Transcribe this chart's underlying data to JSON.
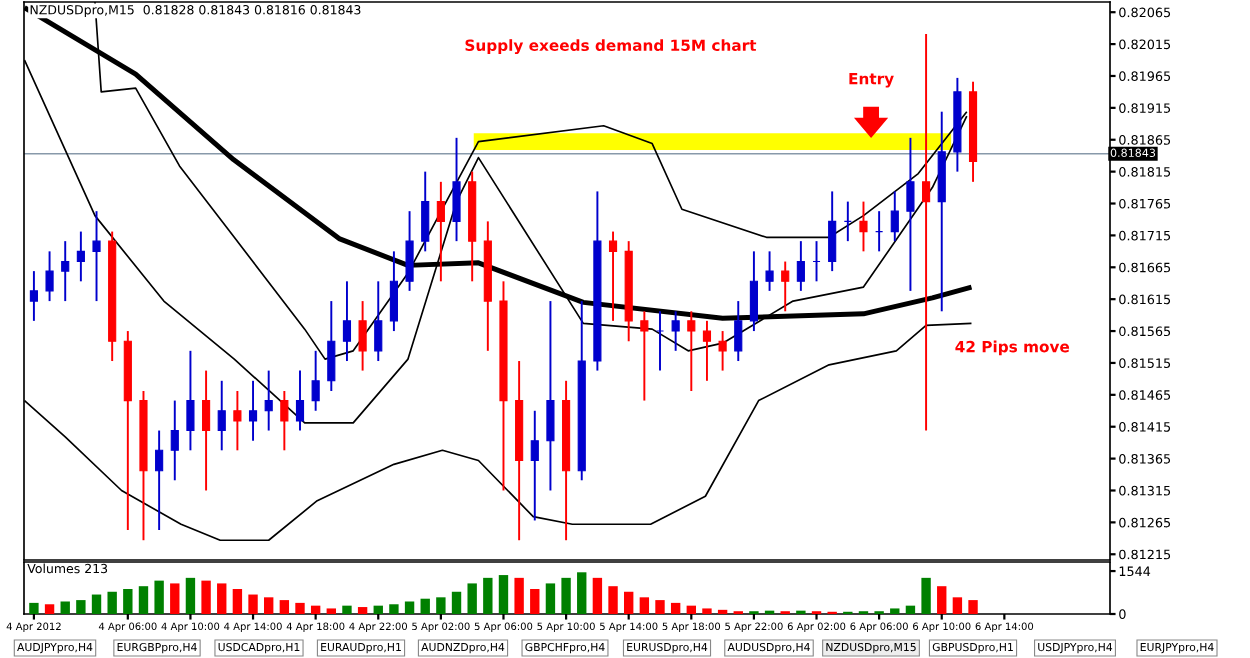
{
  "chart_data": [
    {
      "type": "candlestick",
      "title": "NZDUSDpro,M15  0.81828 0.81843 0.81816 0.81843",
      "x": [
        "2012-04-04T00:00",
        "2012-04-04T01:00",
        "2012-04-04T02:00",
        "2012-04-04T03:00",
        "2012-04-04T04:00",
        "2012-04-04T05:00",
        "2012-04-04T06:00",
        "2012-04-04T07:00",
        "2012-04-04T08:00",
        "2012-04-04T09:00",
        "2012-04-04T10:00",
        "2012-04-04T11:00",
        "2012-04-04T12:00",
        "2012-04-04T13:00",
        "2012-04-04T14:00",
        "2012-04-04T15:00",
        "2012-04-04T16:00",
        "2012-04-04T17:00",
        "2012-04-04T18:00",
        "2012-04-04T19:00",
        "2012-04-04T20:00",
        "2012-04-04T21:00",
        "2012-04-04T22:00",
        "2012-04-04T23:00",
        "2012-04-05T00:00",
        "2012-04-05T01:00",
        "2012-04-05T02:00",
        "2012-04-05T03:00",
        "2012-04-05T04:00",
        "2012-04-05T05:00",
        "2012-04-05T06:00",
        "2012-04-05T07:00",
        "2012-04-05T08:00",
        "2012-04-05T09:00",
        "2012-04-05T10:00",
        "2012-04-05T11:00",
        "2012-04-05T12:00",
        "2012-04-05T13:00",
        "2012-04-05T14:00",
        "2012-04-05T15:00",
        "2012-04-05T16:00",
        "2012-04-05T17:00",
        "2012-04-05T18:00",
        "2012-04-05T19:00",
        "2012-04-05T20:00",
        "2012-04-05T21:00",
        "2012-04-05T22:00",
        "2012-04-05T23:00",
        "2012-04-06T00:00",
        "2012-04-06T01:00",
        "2012-04-06T02:00",
        "2012-04-06T03:00",
        "2012-04-06T04:00",
        "2012-04-06T05:00",
        "2012-04-06T06:00",
        "2012-04-06T07:00",
        "2012-04-06T08:00",
        "2012-04-06T09:00",
        "2012-04-06T10:00",
        "2012-04-06T11:00",
        "2012-04-06T12:00"
      ],
      "ohlc": [
        [
          0.81612,
          0.81659,
          0.81581,
          0.81628
        ],
        [
          0.81628,
          0.8169,
          0.81612,
          0.81659
        ],
        [
          0.81659,
          0.81706,
          0.81612,
          0.81674
        ],
        [
          0.81674,
          0.81721,
          0.81643,
          0.8169
        ],
        [
          0.8169,
          0.81753,
          0.81612,
          0.81706
        ],
        [
          0.81706,
          0.81721,
          0.81518,
          0.81549
        ],
        [
          0.81549,
          0.81565,
          0.81253,
          0.81456
        ],
        [
          0.81456,
          0.81471,
          0.81237,
          0.81346
        ],
        [
          0.81346,
          0.81409,
          0.81253,
          0.81378
        ],
        [
          0.81378,
          0.81456,
          0.81331,
          0.81409
        ],
        [
          0.81409,
          0.81534,
          0.81378,
          0.81456
        ],
        [
          0.81456,
          0.81503,
          0.81315,
          0.81409
        ],
        [
          0.81409,
          0.81487,
          0.81378,
          0.8144
        ],
        [
          0.8144,
          0.81471,
          0.81378,
          0.81424
        ],
        [
          0.81424,
          0.81487,
          0.81393,
          0.8144
        ],
        [
          0.8144,
          0.81503,
          0.81409,
          0.81456
        ],
        [
          0.81456,
          0.81471,
          0.81378,
          0.81424
        ],
        [
          0.81424,
          0.81503,
          0.81409,
          0.81456
        ],
        [
          0.81456,
          0.81534,
          0.8144,
          0.81487
        ],
        [
          0.81487,
          0.81612,
          0.81471,
          0.81549
        ],
        [
          0.81549,
          0.81643,
          0.81518,
          0.81581
        ],
        [
          0.81581,
          0.81612,
          0.81503,
          0.81534
        ],
        [
          0.81534,
          0.81643,
          0.81518,
          0.81581
        ],
        [
          0.81581,
          0.8169,
          0.81565,
          0.81643
        ],
        [
          0.81643,
          0.81753,
          0.81628,
          0.81706
        ],
        [
          0.81706,
          0.81815,
          0.8169,
          0.81768
        ],
        [
          0.81768,
          0.81799,
          0.81643,
          0.81737
        ],
        [
          0.81737,
          0.81868,
          0.81706,
          0.81799
        ],
        [
          0.81799,
          0.81815,
          0.81643,
          0.81706
        ],
        [
          0.81706,
          0.81737,
          0.81534,
          0.81612
        ],
        [
          0.81612,
          0.81643,
          0.81315,
          0.81456
        ],
        [
          0.81456,
          0.81518,
          0.81237,
          0.81362
        ],
        [
          0.81362,
          0.8144,
          0.81268,
          0.81393
        ],
        [
          0.81393,
          0.81612,
          0.81315,
          0.81456
        ],
        [
          0.81456,
          0.81487,
          0.81237,
          0.81346
        ],
        [
          0.81346,
          0.81612,
          0.81331,
          0.81518
        ],
        [
          0.81518,
          0.81784,
          0.81503,
          0.81706
        ],
        [
          0.81706,
          0.81721,
          0.81581,
          0.8169
        ],
        [
          0.8169,
          0.81706,
          0.81549,
          0.81581
        ],
        [
          0.81581,
          0.81596,
          0.81456,
          0.81565
        ],
        [
          0.81565,
          0.81596,
          0.81503,
          0.81565
        ],
        [
          0.81565,
          0.81596,
          0.81534,
          0.81581
        ],
        [
          0.81581,
          0.81596,
          0.81471,
          0.81565
        ],
        [
          0.81565,
          0.81581,
          0.81487,
          0.81549
        ],
        [
          0.81549,
          0.81565,
          0.81503,
          0.81534
        ],
        [
          0.81534,
          0.81612,
          0.81518,
          0.81581
        ],
        [
          0.81581,
          0.8169,
          0.81565,
          0.81643
        ],
        [
          0.81643,
          0.8169,
          0.81628,
          0.81659
        ],
        [
          0.81659,
          0.81674,
          0.81596,
          0.81643
        ],
        [
          0.81643,
          0.81706,
          0.81628,
          0.81674
        ],
        [
          0.81674,
          0.81706,
          0.81643,
          0.81674
        ],
        [
          0.81674,
          0.81784,
          0.81659,
          0.81737
        ],
        [
          0.81737,
          0.81768,
          0.81706,
          0.81737
        ],
        [
          0.81737,
          0.81768,
          0.8169,
          0.81721
        ],
        [
          0.81721,
          0.81753,
          0.8169,
          0.81721
        ],
        [
          0.81721,
          0.81784,
          0.81706,
          0.81753
        ],
        [
          0.81753,
          0.81868,
          0.81628,
          0.81799
        ],
        [
          0.81799,
          0.82031,
          0.81409,
          0.81768
        ],
        [
          0.81768,
          0.81909,
          0.81596,
          0.81846
        ],
        [
          0.81846,
          0.81962,
          0.81815,
          0.8194
        ],
        [
          0.8194,
          0.81956,
          0.81799,
          0.81831
        ]
      ],
      "colors": [
        "#0000cd",
        "#0000cd",
        "#0000cd",
        "#0000cd",
        "#0000cd",
        "#ff0000",
        "#ff0000",
        "#ff0000",
        "#0000cd",
        "#0000cd",
        "#0000cd",
        "#ff0000",
        "#0000cd",
        "#ff0000",
        "#0000cd",
        "#0000cd",
        "#ff0000",
        "#0000cd",
        "#0000cd",
        "#0000cd",
        "#0000cd",
        "#ff0000",
        "#0000cd",
        "#0000cd",
        "#0000cd",
        "#0000cd",
        "#ff0000",
        "#0000cd",
        "#ff0000",
        "#ff0000",
        "#ff0000",
        "#ff0000",
        "#0000cd",
        "#0000cd",
        "#ff0000",
        "#0000cd",
        "#0000cd",
        "#ff0000",
        "#ff0000",
        "#ff0000",
        "#0000cd",
        "#0000cd",
        "#ff0000",
        "#ff0000",
        "#ff0000",
        "#0000cd",
        "#0000cd",
        "#0000cd",
        "#ff0000",
        "#0000cd",
        "#0000cd",
        "#0000cd",
        "#0000cd",
        "#ff0000",
        "#0000cd",
        "#0000cd",
        "#0000cd",
        "#ff0000",
        "#0000cd",
        "#0000cd",
        "#ff0000"
      ],
      "series": [
        {
          "type": "line",
          "color": "#000000",
          "x": [
            "2012-04-03T23:24",
            "2012-04-04T06:30",
            "2012-04-04T12:45",
            "2012-04-04T19:30",
            "2012-04-04T23:54",
            "2012-04-05T04:24",
            "2012-04-05T11:06",
            "2012-04-05T20:00",
            "2012-04-06T05:00",
            "2012-04-06T09:24",
            "2012-04-06T11:54"
          ],
          "values": [
            0.82072,
            0.81968,
            0.81834,
            0.8171,
            0.81668,
            0.81672,
            0.8161,
            0.81585,
            0.81592,
            0.81617,
            0.81634
          ]
        },
        {
          "type": "line",
          "color": "#000000",
          "x": [
            "2012-04-04T03:54",
            "2012-04-04T04:18",
            "2012-04-04T06:30",
            "2012-04-04T09:18",
            "2012-04-04T12:48",
            "2012-04-04T17:18",
            "2012-04-04T18:36",
            "2012-04-04T20:24",
            "2012-04-04T23:54",
            "2012-04-05T04:24",
            "2012-04-05T12:24",
            "2012-04-05T15:30",
            "2012-04-05T17:24",
            "2012-04-05T22:48",
            "2012-04-06T02:48",
            "2012-04-06T05:00",
            "2012-04-06T08:30",
            "2012-04-06T11:36"
          ],
          "values": [
            0.82081,
            0.8194,
            0.81946,
            0.81824,
            0.81712,
            0.81568,
            0.81521,
            0.81534,
            0.81656,
            0.81862,
            0.81887,
            0.81859,
            0.81756,
            0.81712,
            0.81712,
            0.81746,
            0.81812,
            0.81909
          ]
        },
        {
          "type": "line",
          "color": "#000000",
          "x": [
            "2012-04-03T23:24",
            "2012-04-04T03:54",
            "2012-04-04T08:18",
            "2012-04-04T12:48",
            "2012-04-04T17:18",
            "2012-04-04T20:24",
            "2012-04-04T23:54",
            "2012-04-05T03:00",
            "2012-04-05T04:24",
            "2012-04-05T11:06",
            "2012-04-05T15:30",
            "2012-04-05T17:48",
            "2012-04-05T20:00",
            "2012-04-06T00:30",
            "2012-04-06T05:00",
            "2012-04-06T09:24",
            "2012-04-06T11:36"
          ],
          "values": [
            0.8199,
            0.81746,
            0.81612,
            0.81521,
            0.81421,
            0.81421,
            0.81521,
            0.81768,
            0.81837,
            0.81577,
            0.81568,
            0.81534,
            0.81546,
            0.81612,
            0.81634,
            0.8179,
            0.81902
          ]
        },
        {
          "type": "line",
          "color": "#000000",
          "x": [
            "2012-04-03T23:24",
            "2012-04-04T02:00",
            "2012-04-04T05:36",
            "2012-04-04T09:24",
            "2012-04-04T11:54",
            "2012-04-04T15:00",
            "2012-04-04T18:06",
            "2012-04-04T23:00",
            "2012-04-05T02:06",
            "2012-04-05T04:24",
            "2012-04-05T07:54",
            "2012-04-05T10:24",
            "2012-04-05T15:24",
            "2012-04-05T18:54",
            "2012-04-05T22:18",
            "2012-04-06T02:48",
            "2012-04-06T07:06",
            "2012-04-06T09:00",
            "2012-04-06T11:54"
          ],
          "values": [
            0.81456,
            0.81399,
            0.81315,
            0.81262,
            0.81237,
            0.81237,
            0.81299,
            0.81356,
            0.81378,
            0.81362,
            0.81274,
            0.81262,
            0.81262,
            0.81306,
            0.81456,
            0.81512,
            0.81534,
            0.81574,
            0.81577
          ]
        },
        {
          "type": "line",
          "color": "#ffff00",
          "x": [
            "2012-04-05T04:06",
            "2012-04-06T10:36"
          ],
          "values": [
            0.81862,
            0.81862
          ]
        }
      ],
      "ref_lines": [
        {
          "axis": "y",
          "value": 0.81843,
          "label": "0.81843",
          "color": "#8899aa"
        }
      ],
      "annotations": [
        "Supply exeeds demand 15M chart",
        "Entry",
        "42 Pips move"
      ],
      "xlim": [
        "2012-04-03T23:22",
        "2012-04-06T20:45"
      ],
      "ylim": [
        0.81206,
        0.82081
      ],
      "yticks": [
        0.81215,
        0.81265,
        0.81315,
        0.81365,
        0.81415,
        0.81465,
        0.81515,
        0.81565,
        0.81615,
        0.81665,
        0.81715,
        0.81765,
        0.81815,
        0.81865,
        0.81915,
        0.81965,
        0.82015,
        0.82065
      ],
      "tick_labels": "y",
      "grid": false,
      "legend": false
    },
    {
      "type": "bar",
      "title": "Volumes 213",
      "x": [
        "2012-04-04T00:00",
        "2012-04-04T01:00",
        "2012-04-04T02:00",
        "2012-04-04T03:00",
        "2012-04-04T04:00",
        "2012-04-04T05:00",
        "2012-04-04T06:00",
        "2012-04-04T07:00",
        "2012-04-04T08:00",
        "2012-04-04T09:00",
        "2012-04-04T10:00",
        "2012-04-04T11:00",
        "2012-04-04T12:00",
        "2012-04-04T13:00",
        "2012-04-04T14:00",
        "2012-04-04T15:00",
        "2012-04-04T16:00",
        "2012-04-04T17:00",
        "2012-04-04T18:00",
        "2012-04-04T19:00",
        "2012-04-04T20:00",
        "2012-04-04T21:00",
        "2012-04-04T22:00",
        "2012-04-04T23:00",
        "2012-04-05T00:00",
        "2012-04-05T01:00",
        "2012-04-05T02:00",
        "2012-04-05T03:00",
        "2012-04-05T04:00",
        "2012-04-05T05:00",
        "2012-04-05T06:00",
        "2012-04-05T07:00",
        "2012-04-05T08:00",
        "2012-04-05T09:00",
        "2012-04-05T10:00",
        "2012-04-05T11:00",
        "2012-04-05T12:00",
        "2012-04-05T13:00",
        "2012-04-05T14:00",
        "2012-04-05T15:00",
        "2012-04-05T16:00",
        "2012-04-05T17:00",
        "2012-04-05T18:00",
        "2012-04-05T19:00",
        "2012-04-05T20:00",
        "2012-04-05T21:00",
        "2012-04-05T22:00",
        "2012-04-05T23:00",
        "2012-04-06T00:00",
        "2012-04-06T01:00",
        "2012-04-06T02:00",
        "2012-04-06T03:00",
        "2012-04-06T04:00",
        "2012-04-06T05:00",
        "2012-04-06T06:00",
        "2012-04-06T07:00",
        "2012-04-06T08:00",
        "2012-04-06T09:00",
        "2012-04-06T10:00",
        "2012-04-06T11:00",
        "2012-04-06T12:00"
      ],
      "values": [
        400,
        350,
        450,
        500,
        700,
        800,
        900,
        1000,
        1200,
        1100,
        1300,
        1200,
        1100,
        900,
        700,
        600,
        500,
        400,
        300,
        200,
        300,
        250,
        300,
        350,
        450,
        550,
        600,
        800,
        1100,
        1300,
        1400,
        1300,
        900,
        1100,
        1300,
        1500,
        1300,
        1000,
        800,
        600,
        500,
        400,
        300,
        200,
        150,
        100,
        100,
        120,
        100,
        120,
        100,
        80,
        80,
        100,
        100,
        200,
        300,
        1300,
        1000,
        600,
        500
      ],
      "colors": [
        "#008000",
        "#ff0000",
        "#008000",
        "#008000",
        "#008000",
        "#008000",
        "#008000",
        "#008000",
        "#008000",
        "#ff0000",
        "#008000",
        "#ff0000",
        "#ff0000",
        "#ff0000",
        "#ff0000",
        "#ff0000",
        "#ff0000",
        "#ff0000",
        "#ff0000",
        "#ff0000",
        "#008000",
        "#ff0000",
        "#008000",
        "#008000",
        "#008000",
        "#008000",
        "#008000",
        "#008000",
        "#008000",
        "#008000",
        "#008000",
        "#ff0000",
        "#ff0000",
        "#008000",
        "#008000",
        "#008000",
        "#ff0000",
        "#ff0000",
        "#ff0000",
        "#ff0000",
        "#ff0000",
        "#ff0000",
        "#ff0000",
        "#ff0000",
        "#ff0000",
        "#ff0000",
        "#008000",
        "#008000",
        "#ff0000",
        "#008000",
        "#ff0000",
        "#ff0000",
        "#008000",
        "#008000",
        "#008000",
        "#008000",
        "#008000",
        "#008000",
        "#ff0000",
        "#ff0000",
        "#ff0000"
      ],
      "xlim": [
        "2012-04-03T23:22",
        "2012-04-06T20:45"
      ],
      "ylim": [
        0,
        1870
      ],
      "yticks": [
        0,
        1544
      ],
      "xticks": [
        {
          "value": "2012-04-04T00:00",
          "label": "4 Apr 2012"
        },
        {
          "value": "2012-04-04T06:00",
          "label": "4 Apr 06:00"
        },
        {
          "value": "2012-04-04T10:00",
          "label": "4 Apr 10:00"
        },
        {
          "value": "2012-04-04T14:00",
          "label": "4 Apr 14:00"
        },
        {
          "value": "2012-04-04T18:00",
          "label": "4 Apr 18:00"
        },
        {
          "value": "2012-04-04T22:00",
          "label": "4 Apr 22:00"
        },
        {
          "value": "2012-04-05T02:00",
          "label": "5 Apr 02:00"
        },
        {
          "value": "2012-04-05T06:00",
          "label": "5 Apr 06:00"
        },
        {
          "value": "2012-04-05T10:00",
          "label": "5 Apr 10:00"
        },
        {
          "value": "2012-04-05T14:00",
          "label": "5 Apr 14:00"
        },
        {
          "value": "2012-04-05T18:00",
          "label": "5 Apr 18:00"
        },
        {
          "value": "2012-04-05T22:00",
          "label": "5 Apr 22:00"
        },
        {
          "value": "2012-04-06T02:00",
          "label": "6 Apr 02:00"
        },
        {
          "value": "2012-04-06T06:00",
          "label": "6 Apr 06:00"
        },
        {
          "value": "2012-04-06T10:00",
          "label": "6 Apr 10:00"
        },
        {
          "value": "2012-04-06T14:00",
          "label": "6 Apr 14:00"
        }
      ],
      "annotations": [
        "AUDJPYpro,H4",
        "EURGBPpro,H4",
        "USDCADpro,H1",
        "EURAUDpro,H1",
        "AUDNZDpro,H4",
        "GBPCHFpro,H4",
        "EURUSDpro,H4",
        "AUDUSDpro,H4",
        "NZDUSDpro,M15",
        "GBPUSDpro,H1",
        "USDJPYpro,H4",
        "EURJPYpro,H4"
      ],
      "grid": false,
      "legend": false
    }
  ]
}
